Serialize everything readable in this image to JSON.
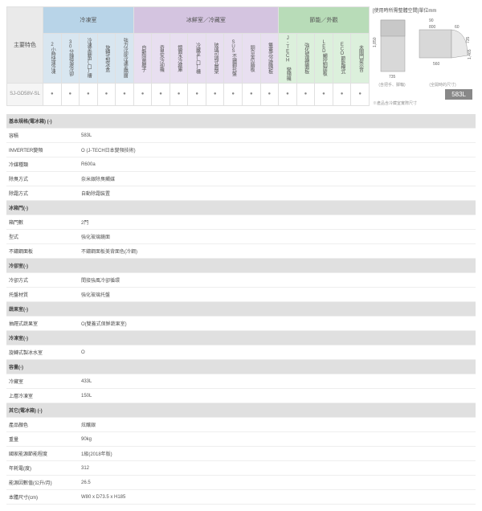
{
  "features": {
    "mainLabel": "主要特色",
    "groups": [
      {
        "label": "冷凍室",
        "class": "freeze",
        "colClass": "freeze-c",
        "cols": [
          "2小時快速冷凍",
          "30分鐘快速冷卻",
          "冷凍室圓角(口)槽",
          "旋轉式製冰盒",
          "強力冷卻冷凍室隔層"
        ]
      },
      {
        "label": "冰鮮室／冷藏室",
        "class": "fridge",
        "colClass": "fridge-c",
        "cols": [
          "自動除菌離子",
          "奇異水冷卻機",
          "鏡面水冷藏庫",
          "冷藏室(口)槽",
          "玻璃可調式層架",
          "SUS不鏽鋼托盤",
          "銅合金位踏板",
          "雙蓋式冷藏踏板"
        ]
      },
      {
        "label": "節能／外觀",
        "class": "energy",
        "colClass": "energy-c",
        "cols": [
          "J-TECH 變頻機",
          "強化玻璃鏡面板",
          "LED觸控制面板",
          "ECO節能模式",
          "未關門提示音"
        ]
      }
    ],
    "model": "SJ-GD58V-SL"
  },
  "diagram": {
    "title": "[使用時所需整體空間]單位mm",
    "fig1": {
      "h": "1,850",
      "w": "735",
      "note": "(含把手、腳輪)"
    },
    "fig2": {
      "t": "90",
      "w1": "800",
      "w2": "60",
      "d": "735",
      "d2": "1,465",
      "base": "560",
      "note": "(全開時的尺寸)"
    },
    "capacity": "583L",
    "subnote": "※產品含冷藏室實際尺寸"
  },
  "spec": {
    "sections": [
      {
        "title": "基本規格(電冰箱) (-)",
        "rows": [
          [
            "容積",
            "583L"
          ],
          [
            "INVERTER變頻",
            "O (J-TECH日本變頻技術)"
          ],
          [
            "冷媒種類",
            "R600a"
          ],
          [
            "除臭方式",
            "奈米銀除臭觸媒"
          ],
          [
            "除霜方式",
            "自動除霜裝置"
          ]
        ]
      },
      {
        "title": "冰箱門(-)",
        "rows": [
          [
            "箱門數",
            "2門"
          ],
          [
            "型式",
            "強化玻璃鏡面"
          ],
          [
            "不鏽鋼面板",
            "不鏽鋼面板美背面色(冷鋼)"
          ]
        ]
      },
      {
        "title": "冷卻室(-)",
        "rows": [
          [
            "冷卻方式",
            "間接強風冷卻循環"
          ],
          [
            "托盤材質",
            "強化玻璃托盤"
          ]
        ]
      },
      {
        "title": "蔬果室(-)",
        "rows": [
          [
            "抽屜式蔬果室",
            "O(雙蓋式保鮮蔬果室)"
          ]
        ]
      },
      {
        "title": "冷凍室(-)",
        "rows": [
          [
            "旋轉式製冰水室",
            "O"
          ]
        ]
      },
      {
        "title": "容量(-)",
        "rows": [
          [
            "冷藏室",
            "433L"
          ],
          [
            "上層冷凍室",
            "150L"
          ]
        ]
      },
      {
        "title": "其它(電冰箱) (-)",
        "rows": [
          [
            "產品顏色",
            "炫釀銀"
          ],
          [
            "重量",
            "90kg"
          ],
          [
            "國家能源節能程度",
            "1級(2018年版)"
          ],
          [
            "年耗電(度)",
            "312"
          ],
          [
            "能源因數值(公升/月)",
            "26.5"
          ],
          [
            "本體尺寸(cm)",
            "W80 x D73.5 x H185"
          ]
        ]
      }
    ]
  }
}
